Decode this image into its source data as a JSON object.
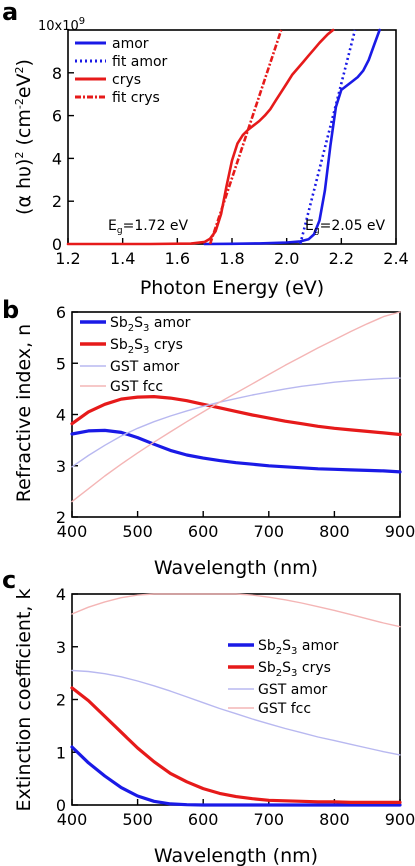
{
  "chart_data": [
    {
      "panel": "a",
      "type": "line",
      "xlabel": "Photon Energy (eV)",
      "ylabel": "(αhυ)²(cm⁻²eV²)",
      "ylabel_parts": {
        "base": "(α hυ)",
        "sup1": "2",
        "mid": " (cm",
        "sup2": "-2",
        "unit": "eV",
        "sup3": "2",
        "end": ")"
      },
      "xlim": [
        1.2,
        2.4
      ],
      "ylim": [
        0,
        10
      ],
      "y_multiplier": "10x10",
      "y_multiplier_exp": "9",
      "xticks": [
        "1.2",
        "1.4",
        "1.6",
        "1.8",
        "2.0",
        "2.2",
        "2.4"
      ],
      "yticks": [
        "0",
        "2",
        "4",
        "6",
        "8"
      ],
      "legend_position": "upper-left",
      "series": [
        {
          "name": "amor",
          "color": "#1a1ae6",
          "style": "solid",
          "x": [
            1.7,
            1.8,
            1.9,
            2.0,
            2.05,
            2.08,
            2.1,
            2.12,
            2.14,
            2.16,
            2.18,
            2.2,
            2.22,
            2.24,
            2.26,
            2.28,
            2.3,
            2.32,
            2.34
          ],
          "y": [
            0.0,
            0.01,
            0.03,
            0.07,
            0.12,
            0.22,
            0.45,
            1.1,
            2.5,
            4.6,
            6.4,
            7.2,
            7.4,
            7.6,
            7.8,
            8.1,
            8.6,
            9.3,
            10.0
          ]
        },
        {
          "name": "fit amor",
          "color": "#1a1ae6",
          "style": "dotted",
          "x": [
            2.05,
            2.25
          ],
          "y": [
            0.0,
            10.0
          ]
        },
        {
          "name": "crys",
          "color": "#e61a1a",
          "style": "solid",
          "x": [
            1.2,
            1.5,
            1.65,
            1.7,
            1.72,
            1.74,
            1.76,
            1.78,
            1.8,
            1.82,
            1.84,
            1.86,
            1.88,
            1.9,
            1.92,
            1.94,
            1.96,
            1.98,
            2.0,
            2.02,
            2.04,
            2.06,
            2.08,
            2.1,
            2.12,
            2.15,
            2.17
          ],
          "y": [
            0.0,
            0.0,
            0.02,
            0.1,
            0.25,
            0.6,
            1.4,
            2.7,
            3.9,
            4.7,
            5.1,
            5.35,
            5.55,
            5.75,
            6.0,
            6.3,
            6.7,
            7.1,
            7.5,
            7.9,
            8.2,
            8.5,
            8.8,
            9.1,
            9.4,
            9.8,
            10.0
          ]
        },
        {
          "name": "fit crys",
          "color": "#e61a1a",
          "style": "dashdot",
          "x": [
            1.72,
            1.98
          ],
          "y": [
            0.0,
            10.0
          ]
        }
      ],
      "annotations": [
        {
          "text": "1.72 eV",
          "prefix": "E",
          "sub": "g",
          "color": "#e61a1a"
        },
        {
          "text": "2.05 eV",
          "prefix": "E",
          "sub": "g",
          "color": "#1a1ae6"
        }
      ]
    },
    {
      "panel": "b",
      "type": "line",
      "xlabel": "Wavelength (nm)",
      "ylabel": "Refractive index, n",
      "xlim": [
        400,
        900
      ],
      "ylim": [
        2,
        6
      ],
      "xticks": [
        "400",
        "500",
        "600",
        "700",
        "800",
        "900"
      ],
      "yticks": [
        "2",
        "3",
        "4",
        "5",
        "6"
      ],
      "legend_position": "upper-left",
      "x": [
        400,
        425,
        450,
        475,
        500,
        525,
        550,
        575,
        600,
        625,
        650,
        675,
        700,
        725,
        750,
        775,
        800,
        825,
        850,
        875,
        900
      ],
      "series": [
        {
          "name": "Sb2S3 amor",
          "color": "#1a1ae6",
          "width": "thick",
          "y": [
            3.62,
            3.68,
            3.69,
            3.65,
            3.55,
            3.42,
            3.3,
            3.21,
            3.15,
            3.1,
            3.06,
            3.03,
            3.0,
            2.98,
            2.96,
            2.94,
            2.93,
            2.92,
            2.91,
            2.9,
            2.88
          ]
        },
        {
          "name": "Sb2S3 crys",
          "color": "#e61a1a",
          "width": "thick",
          "y": [
            3.82,
            4.05,
            4.2,
            4.3,
            4.34,
            4.35,
            4.32,
            4.27,
            4.2,
            4.13,
            4.06,
            3.99,
            3.93,
            3.87,
            3.82,
            3.77,
            3.73,
            3.7,
            3.67,
            3.64,
            3.61
          ]
        },
        {
          "name": "GST amor",
          "color": "#b8b8f0",
          "width": "thin",
          "y": [
            2.98,
            3.2,
            3.4,
            3.58,
            3.73,
            3.86,
            3.97,
            4.07,
            4.16,
            4.24,
            4.31,
            4.38,
            4.44,
            4.5,
            4.55,
            4.59,
            4.63,
            4.66,
            4.68,
            4.7,
            4.71
          ]
        },
        {
          "name": "GST fcc",
          "color": "#f4b5b5",
          "width": "thin",
          "y": [
            2.3,
            2.55,
            2.8,
            3.03,
            3.25,
            3.46,
            3.66,
            3.86,
            4.05,
            4.24,
            4.42,
            4.6,
            4.78,
            4.96,
            5.13,
            5.3,
            5.46,
            5.62,
            5.77,
            5.91,
            6.02
          ]
        }
      ]
    },
    {
      "panel": "c",
      "type": "line",
      "xlabel": "Wavelength (nm)",
      "ylabel": "Extinction coefficient, k",
      "xlim": [
        400,
        900
      ],
      "ylim": [
        0,
        4
      ],
      "xticks": [
        "400",
        "500",
        "600",
        "700",
        "800",
        "900"
      ],
      "yticks": [
        "0",
        "1",
        "2",
        "3",
        "4"
      ],
      "legend_position": "center-right",
      "x": [
        400,
        425,
        450,
        475,
        500,
        525,
        550,
        575,
        600,
        625,
        650,
        675,
        700,
        725,
        750,
        775,
        800,
        825,
        850,
        875,
        900
      ],
      "series": [
        {
          "name": "Sb2S3 amor",
          "color": "#1a1ae6",
          "width": "thick",
          "y": [
            1.1,
            0.8,
            0.55,
            0.33,
            0.17,
            0.07,
            0.02,
            0.005,
            0.0,
            0.0,
            0.0,
            0.0,
            0.0,
            0.0,
            0.0,
            0.0,
            0.0,
            0.0,
            0.0,
            0.0,
            0.0
          ]
        },
        {
          "name": "Sb2S3 crys",
          "color": "#e61a1a",
          "width": "thick",
          "y": [
            2.22,
            1.98,
            1.68,
            1.38,
            1.08,
            0.82,
            0.6,
            0.44,
            0.31,
            0.22,
            0.16,
            0.12,
            0.09,
            0.08,
            0.07,
            0.06,
            0.06,
            0.05,
            0.05,
            0.05,
            0.05
          ]
        },
        {
          "name": "GST amor",
          "color": "#b8b8f0",
          "width": "thin",
          "y": [
            2.55,
            2.53,
            2.49,
            2.43,
            2.35,
            2.26,
            2.16,
            2.05,
            1.94,
            1.83,
            1.73,
            1.63,
            1.54,
            1.45,
            1.37,
            1.29,
            1.22,
            1.15,
            1.08,
            1.01,
            0.95
          ]
        },
        {
          "name": "GST fcc",
          "color": "#f4b5b5",
          "width": "thin",
          "y": [
            3.62,
            3.75,
            3.85,
            3.93,
            3.98,
            4.01,
            4.03,
            4.04,
            4.04,
            4.03,
            4.01,
            3.98,
            3.94,
            3.89,
            3.83,
            3.76,
            3.69,
            3.61,
            3.53,
            3.45,
            3.38
          ]
        }
      ]
    }
  ]
}
